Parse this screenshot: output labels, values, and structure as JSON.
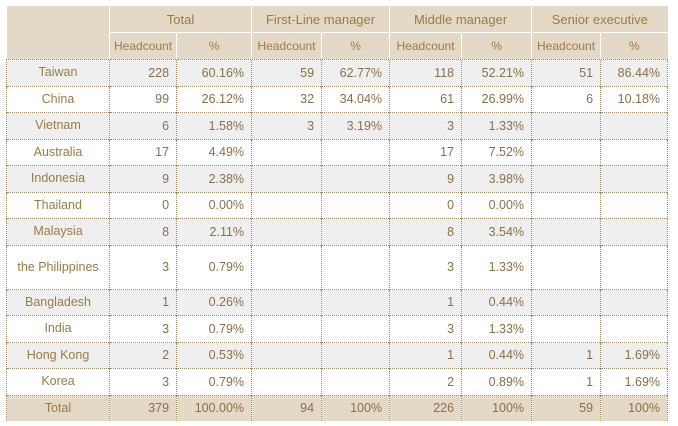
{
  "group_headers": [
    "Total",
    "First-Line manager",
    "Middle manager",
    "Senior executive"
  ],
  "sub_headers": [
    "Headcount",
    "%",
    "Headcount",
    "%",
    "Headcount",
    "%",
    "Headcount",
    "%"
  ],
  "rows": [
    {
      "label": "Taiwan",
      "total_hc": "228",
      "total_pct": "60.16%",
      "flm_hc": "59",
      "flm_pct": "62.77%",
      "mm_hc": "118",
      "mm_pct": "52.21%",
      "se_hc": "51",
      "se_pct": "86.44%"
    },
    {
      "label": "China",
      "total_hc": "99",
      "total_pct": "26.12%",
      "flm_hc": "32",
      "flm_pct": "34.04%",
      "mm_hc": "61",
      "mm_pct": "26.99%",
      "se_hc": "6",
      "se_pct": "10.18%"
    },
    {
      "label": "Vietnam",
      "total_hc": "6",
      "total_pct": "1.58%",
      "flm_hc": "3",
      "flm_pct": "3.19%",
      "mm_hc": "3",
      "mm_pct": "1.33%",
      "se_hc": "",
      "se_pct": ""
    },
    {
      "label": "Australia",
      "total_hc": "17",
      "total_pct": "4.49%",
      "flm_hc": "",
      "flm_pct": "",
      "mm_hc": "17",
      "mm_pct": "7.52%",
      "se_hc": "",
      "se_pct": ""
    },
    {
      "label": "Indonesia",
      "total_hc": "9",
      "total_pct": "2.38%",
      "flm_hc": "",
      "flm_pct": "",
      "mm_hc": "9",
      "mm_pct": "3.98%",
      "se_hc": "",
      "se_pct": ""
    },
    {
      "label": "Thailand",
      "total_hc": "0",
      "total_pct": "0.00%",
      "flm_hc": "",
      "flm_pct": "",
      "mm_hc": "0",
      "mm_pct": "0.00%",
      "se_hc": "",
      "se_pct": ""
    },
    {
      "label": "Malaysia",
      "total_hc": "8",
      "total_pct": "2.11%",
      "flm_hc": "",
      "flm_pct": "",
      "mm_hc": "8",
      "mm_pct": "3.54%",
      "se_hc": "",
      "se_pct": ""
    },
    {
      "label": "the Philippines",
      "total_hc": "3",
      "total_pct": "0.79%",
      "flm_hc": "",
      "flm_pct": "",
      "mm_hc": "3",
      "mm_pct": "1.33%",
      "se_hc": "",
      "se_pct": ""
    },
    {
      "label": "Bangladesh",
      "total_hc": "1",
      "total_pct": "0.26%",
      "flm_hc": "",
      "flm_pct": "",
      "mm_hc": "1",
      "mm_pct": "0.44%",
      "se_hc": "",
      "se_pct": ""
    },
    {
      "label": "India",
      "total_hc": "3",
      "total_pct": "0.79%",
      "flm_hc": "",
      "flm_pct": "",
      "mm_hc": "3",
      "mm_pct": "1.33%",
      "se_hc": "",
      "se_pct": ""
    },
    {
      "label": "Hong Kong",
      "total_hc": "2",
      "total_pct": "0.53%",
      "flm_hc": "",
      "flm_pct": "",
      "mm_hc": "1",
      "mm_pct": "0.44%",
      "se_hc": "1",
      "se_pct": "1.69%"
    },
    {
      "label": "Korea",
      "total_hc": "3",
      "total_pct": "0.79%",
      "flm_hc": "",
      "flm_pct": "",
      "mm_hc": "2",
      "mm_pct": "0.89%",
      "se_hc": "1",
      "se_pct": "1.69%"
    }
  ],
  "total_row": {
    "label": "Total",
    "total_hc": "379",
    "total_pct": "100.00%",
    "flm_hc": "94",
    "flm_pct": "100%",
    "mm_hc": "226",
    "mm_pct": "100%",
    "se_hc": "59",
    "se_pct": "100%"
  }
}
